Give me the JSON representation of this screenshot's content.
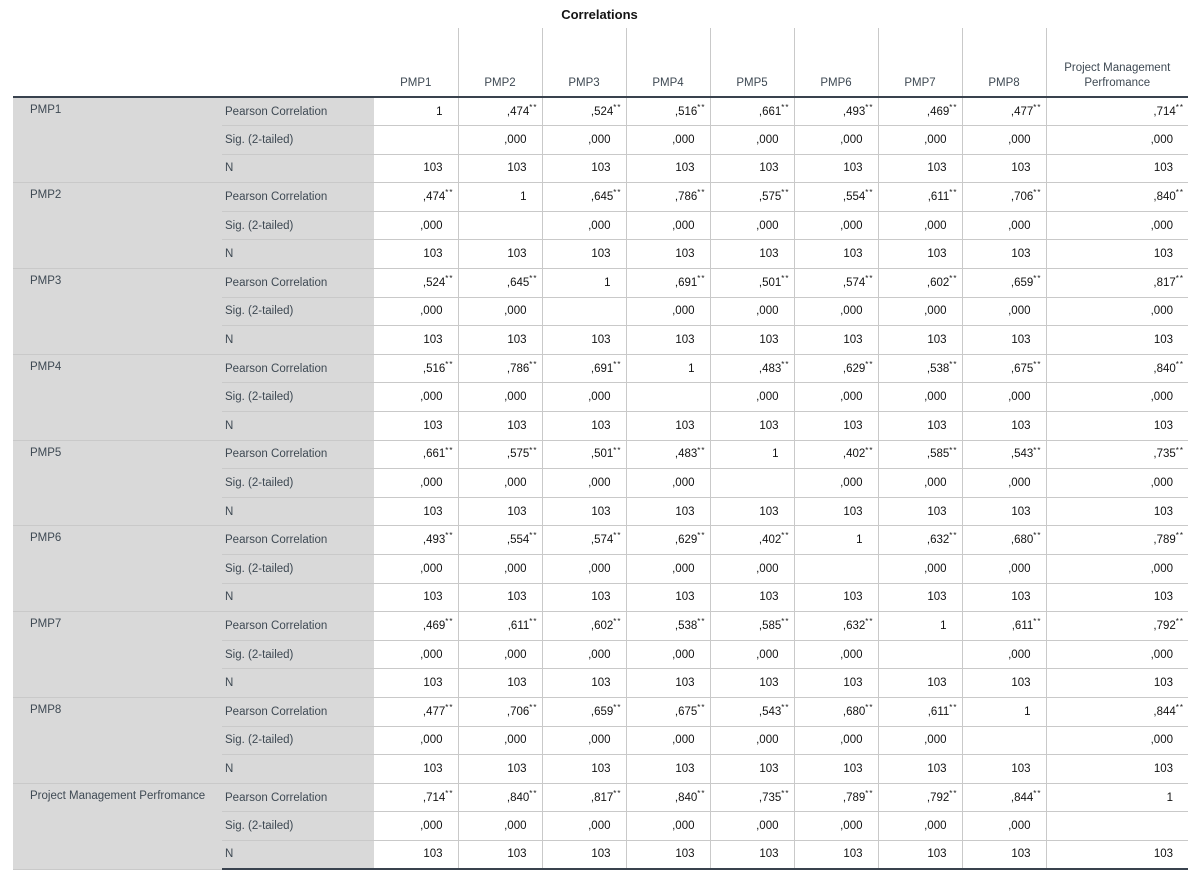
{
  "title": "Correlations",
  "table": {
    "columns": [
      "PMP1",
      "PMP2",
      "PMP3",
      "PMP4",
      "PMP5",
      "PMP6",
      "PMP7",
      "PMP8",
      "Project Management Perfromance"
    ],
    "stat_labels": {
      "pearson": "Pearson Correlation",
      "sig": "Sig. (2-tailed)",
      "n": "N"
    },
    "rows": [
      {
        "label": "PMP1",
        "pearson": [
          "1",
          ",474**",
          ",524**",
          ",516**",
          ",661**",
          ",493**",
          ",469**",
          ",477**",
          ",714**"
        ],
        "sig": [
          "",
          ",000",
          ",000",
          ",000",
          ",000",
          ",000",
          ",000",
          ",000",
          ",000"
        ],
        "n": [
          "103",
          "103",
          "103",
          "103",
          "103",
          "103",
          "103",
          "103",
          "103"
        ]
      },
      {
        "label": "PMP2",
        "pearson": [
          ",474**",
          "1",
          ",645**",
          ",786**",
          ",575**",
          ",554**",
          ",611**",
          ",706**",
          ",840**"
        ],
        "sig": [
          ",000",
          "",
          ",000",
          ",000",
          ",000",
          ",000",
          ",000",
          ",000",
          ",000"
        ],
        "n": [
          "103",
          "103",
          "103",
          "103",
          "103",
          "103",
          "103",
          "103",
          "103"
        ]
      },
      {
        "label": "PMP3",
        "pearson": [
          ",524**",
          ",645**",
          "1",
          ",691**",
          ",501**",
          ",574**",
          ",602**",
          ",659**",
          ",817**"
        ],
        "sig": [
          ",000",
          ",000",
          "",
          ",000",
          ",000",
          ",000",
          ",000",
          ",000",
          ",000"
        ],
        "n": [
          "103",
          "103",
          "103",
          "103",
          "103",
          "103",
          "103",
          "103",
          "103"
        ]
      },
      {
        "label": "PMP4",
        "pearson": [
          ",516**",
          ",786**",
          ",691**",
          "1",
          ",483**",
          ",629**",
          ",538**",
          ",675**",
          ",840**"
        ],
        "sig": [
          ",000",
          ",000",
          ",000",
          "",
          ",000",
          ",000",
          ",000",
          ",000",
          ",000"
        ],
        "n": [
          "103",
          "103",
          "103",
          "103",
          "103",
          "103",
          "103",
          "103",
          "103"
        ]
      },
      {
        "label": "PMP5",
        "pearson": [
          ",661**",
          ",575**",
          ",501**",
          ",483**",
          "1",
          ",402**",
          ",585**",
          ",543**",
          ",735**"
        ],
        "sig": [
          ",000",
          ",000",
          ",000",
          ",000",
          "",
          ",000",
          ",000",
          ",000",
          ",000"
        ],
        "n": [
          "103",
          "103",
          "103",
          "103",
          "103",
          "103",
          "103",
          "103",
          "103"
        ]
      },
      {
        "label": "PMP6",
        "pearson": [
          ",493**",
          ",554**",
          ",574**",
          ",629**",
          ",402**",
          "1",
          ",632**",
          ",680**",
          ",789**"
        ],
        "sig": [
          ",000",
          ",000",
          ",000",
          ",000",
          ",000",
          "",
          ",000",
          ",000",
          ",000"
        ],
        "n": [
          "103",
          "103",
          "103",
          "103",
          "103",
          "103",
          "103",
          "103",
          "103"
        ]
      },
      {
        "label": "PMP7",
        "pearson": [
          ",469**",
          ",611**",
          ",602**",
          ",538**",
          ",585**",
          ",632**",
          "1",
          ",611**",
          ",792**"
        ],
        "sig": [
          ",000",
          ",000",
          ",000",
          ",000",
          ",000",
          ",000",
          "",
          ",000",
          ",000"
        ],
        "n": [
          "103",
          "103",
          "103",
          "103",
          "103",
          "103",
          "103",
          "103",
          "103"
        ]
      },
      {
        "label": "PMP8",
        "pearson": [
          ",477**",
          ",706**",
          ",659**",
          ",675**",
          ",543**",
          ",680**",
          ",611**",
          "1",
          ",844**"
        ],
        "sig": [
          ",000",
          ",000",
          ",000",
          ",000",
          ",000",
          ",000",
          ",000",
          "",
          ",000"
        ],
        "n": [
          "103",
          "103",
          "103",
          "103",
          "103",
          "103",
          "103",
          "103",
          "103"
        ]
      },
      {
        "label": "Project Management Perfromance",
        "pearson": [
          ",714**",
          ",840**",
          ",817**",
          ",840**",
          ",735**",
          ",789**",
          ",792**",
          ",844**",
          "1"
        ],
        "sig": [
          ",000",
          ",000",
          ",000",
          ",000",
          ",000",
          ",000",
          ",000",
          ",000",
          ""
        ],
        "n": [
          "103",
          "103",
          "103",
          "103",
          "103",
          "103",
          "103",
          "103",
          "103"
        ]
      }
    ]
  },
  "colors": {
    "label_background": "#d9d9d9",
    "label_text": "#3e4953",
    "heavy_border": "#39424e",
    "light_border": "#c9c9c9",
    "value_text": "#121212"
  }
}
